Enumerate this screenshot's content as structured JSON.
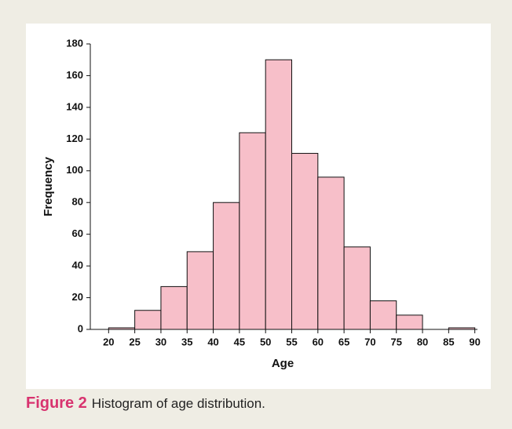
{
  "chart_data": {
    "type": "histogram",
    "bins": [
      20,
      25,
      30,
      35,
      40,
      45,
      50,
      55,
      60,
      65,
      70,
      75,
      80,
      85,
      90
    ],
    "values": [
      1,
      12,
      27,
      49,
      80,
      124,
      170,
      111,
      96,
      52,
      18,
      9,
      0,
      1
    ],
    "color": "#f7bfc9",
    "xlabel": "Age",
    "ylabel": "Frequency",
    "xlim": [
      16.5,
      90.5
    ],
    "xticks": [
      20,
      25,
      30,
      35,
      40,
      45,
      50,
      55,
      60,
      65,
      70,
      75,
      80,
      85,
      90
    ],
    "ylim": [
      0,
      180
    ],
    "yticks": [
      0,
      20,
      40,
      60,
      80,
      100,
      120,
      140,
      160,
      180
    ]
  },
  "caption": {
    "label": "Figure 2",
    "text": "Histogram of age distribution."
  }
}
